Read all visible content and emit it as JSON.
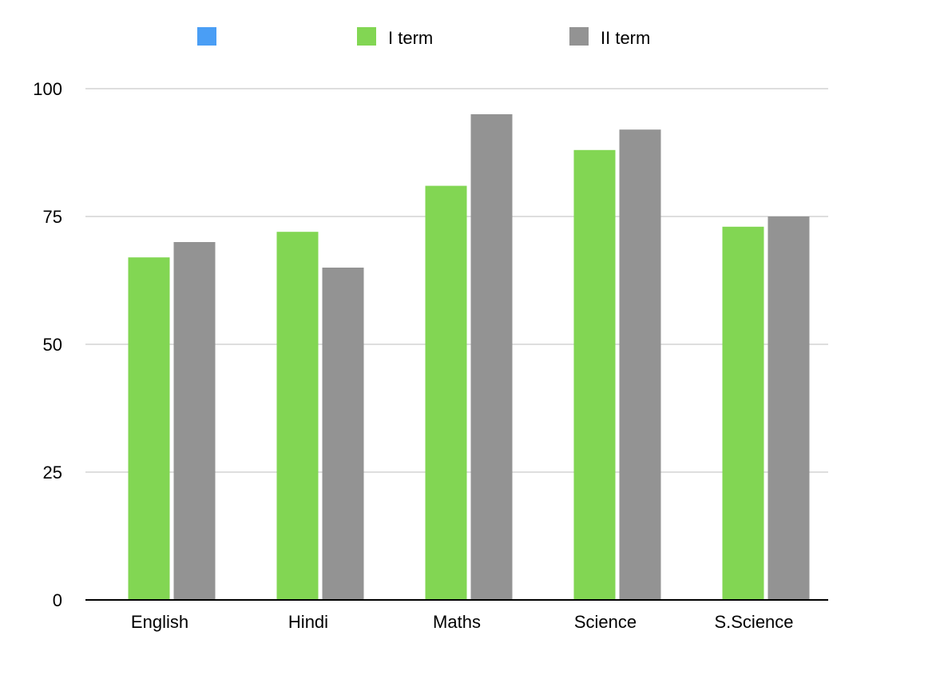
{
  "chart_data": {
    "type": "bar",
    "categories": [
      "English",
      "Hindi",
      "Maths",
      "Science",
      "S.Science"
    ],
    "series": [
      {
        "name": "",
        "color": "#4A9EF5",
        "values": [
          0,
          0,
          0,
          0,
          0
        ]
      },
      {
        "name": "I term",
        "color": "#82D653",
        "values": [
          67,
          72,
          81,
          88,
          73
        ]
      },
      {
        "name": "II term",
        "color": "#939393",
        "values": [
          70,
          65,
          95,
          92,
          75
        ]
      }
    ],
    "yticks": [
      0,
      25,
      50,
      75,
      100
    ],
    "ylim": [
      0,
      100
    ],
    "grid": true,
    "legend_position": "top",
    "grid_color": "#BDBDBD",
    "axis_color": "#000000"
  }
}
